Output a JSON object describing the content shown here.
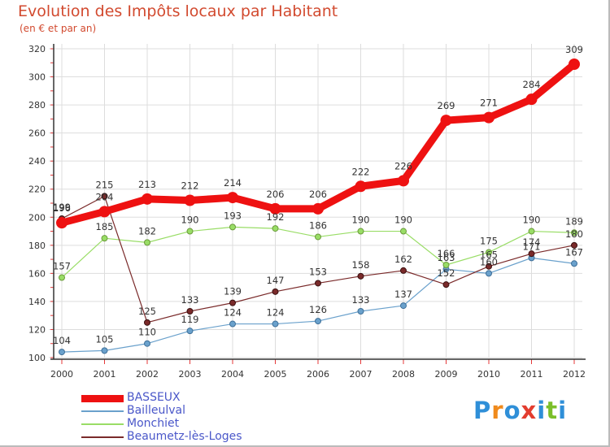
{
  "title": "Evolution des Impôts locaux par Habitant",
  "subtitle": "(en € et par an)",
  "logo": [
    "P",
    "r",
    "o",
    "x",
    "i",
    "t",
    "i"
  ],
  "colors": {
    "axis": "#333333",
    "grid": "#dddddd",
    "label": "#333333",
    "tick_red": "#e5393a",
    "logo": [
      "#2f8fd8",
      "#f08a1c",
      "#2f8fd8",
      "#e33d2f",
      "#2f8fd8",
      "#7bbf2a",
      "#2f8fd8"
    ]
  },
  "chart_data": {
    "type": "line",
    "categories": [
      "2000",
      "2001",
      "2002",
      "2003",
      "2004",
      "2005",
      "2006",
      "2007",
      "2008",
      "2009",
      "2010",
      "2011",
      "2012"
    ],
    "ylim": [
      100,
      320
    ],
    "yticks": [
      100,
      120,
      140,
      160,
      180,
      200,
      220,
      240,
      260,
      280,
      300,
      320
    ],
    "grid": true,
    "legend_position": "bottom-left",
    "series": [
      {
        "name": "BASSEUX",
        "color": "#ee1111",
        "width": 9,
        "marker_r": 7,
        "values": [
          196,
          204,
          213,
          212,
          214,
          206,
          206,
          222,
          226,
          269,
          271,
          284,
          309
        ],
        "labels": [
          "196",
          "204",
          "213",
          "212",
          "214",
          "206",
          "206",
          "222",
          "226",
          "269",
          "271",
          "284",
          "309"
        ]
      },
      {
        "name": "Bailleulval",
        "color": "#6aa1cc",
        "width": 1.2,
        "marker_r": 3.5,
        "values": [
          104,
          105,
          110,
          119,
          124,
          124,
          126,
          133,
          137,
          163,
          160,
          171,
          167
        ],
        "labels": [
          "104",
          "105",
          "110",
          "119",
          "124",
          "124",
          "126",
          "133",
          "137",
          "163",
          "160",
          "171",
          "167"
        ]
      },
      {
        "name": "Monchiet",
        "color": "#99dd66",
        "width": 1.2,
        "marker_r": 3.5,
        "values": [
          157,
          185,
          182,
          190,
          193,
          192,
          186,
          190,
          190,
          166,
          175,
          190,
          189
        ],
        "labels": [
          "157",
          "185",
          "182",
          "190",
          "193",
          "192",
          "186",
          "190",
          "190",
          "166",
          "175",
          "190",
          "189"
        ]
      },
      {
        "name": "Beaumetz-lès-Loges",
        "color": "#7a2a2a",
        "width": 1.2,
        "marker_r": 3.5,
        "values": [
          199,
          215,
          125,
          133,
          139,
          147,
          153,
          158,
          162,
          152,
          165,
          174,
          180
        ],
        "labels": [
          "199",
          "215",
          "125",
          "133",
          "139",
          "147",
          "153",
          "158",
          "162",
          "152",
          "165",
          "174",
          "180"
        ]
      }
    ]
  }
}
